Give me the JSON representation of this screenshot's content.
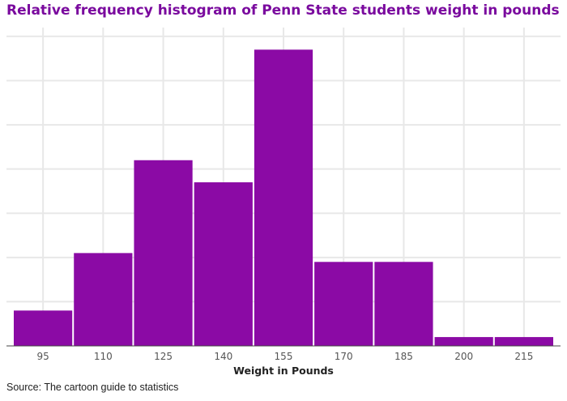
{
  "chart_data": {
    "type": "bar",
    "title": "Relative frequency histogram of Penn State students weight in pounds",
    "xlabel": "Weight in Pounds",
    "ylabel": "",
    "categories": [
      "95",
      "110",
      "125",
      "140",
      "155",
      "170",
      "185",
      "200",
      "215"
    ],
    "values": [
      0.04,
      0.105,
      0.21,
      0.185,
      0.335,
      0.095,
      0.095,
      0.01,
      0.01
    ],
    "ylim": [
      0,
      0.36
    ],
    "y_gridlines": [
      0.05,
      0.1,
      0.15,
      0.2,
      0.25,
      0.3,
      0.35
    ],
    "grid": true,
    "bar_color": "#8b0aa5",
    "grid_color": "#e8e8e8"
  },
  "source": "Source: The cartoon guide to statistics"
}
